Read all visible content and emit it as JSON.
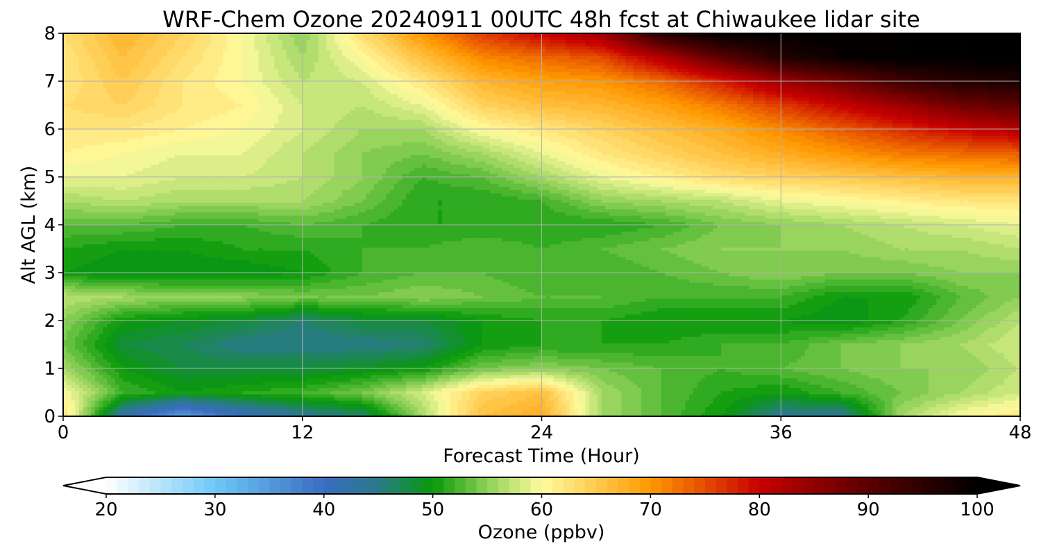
{
  "chart_data": {
    "type": "heatmap",
    "title": "WRF-Chem Ozone  20240911 00UTC 48h fcst at Chiwaukee lidar site",
    "xlabel": "Forecast Time (Hour)",
    "ylabel": "Alt AGL (km)",
    "xlim": [
      0,
      48
    ],
    "ylim": [
      0,
      8
    ],
    "xticks": [
      0,
      12,
      24,
      36,
      48
    ],
    "yticks": [
      0,
      1,
      2,
      3,
      4,
      5,
      6,
      7,
      8
    ],
    "grid": true,
    "x_hours": [
      0,
      3,
      6,
      9,
      12,
      15,
      18,
      21,
      24,
      27,
      30,
      33,
      36,
      39,
      42,
      45,
      48
    ],
    "y_km": [
      0,
      0.5,
      1,
      1.5,
      2,
      2.5,
      3,
      3.5,
      4,
      4.5,
      5,
      5.5,
      6,
      6.5,
      7,
      7.5,
      8
    ],
    "ozone_ppbv": [
      [
        63,
        42,
        34,
        40,
        44,
        46,
        56,
        66,
        68,
        56,
        53,
        50,
        44,
        44,
        56,
        60,
        62
      ],
      [
        60,
        52,
        50,
        51,
        52,
        54,
        58,
        64,
        66,
        56,
        53,
        51,
        50,
        52,
        54,
        56,
        58
      ],
      [
        56,
        50,
        48,
        48,
        48,
        49,
        50,
        54,
        55,
        54,
        53,
        52,
        53,
        54,
        55,
        55,
        57
      ],
      [
        54,
        48,
        47,
        45,
        45,
        45,
        46,
        50,
        51,
        51,
        51,
        52,
        52,
        54,
        55,
        56,
        58
      ],
      [
        55,
        50,
        49,
        48,
        46,
        48,
        48,
        50,
        51,
        51,
        50,
        50,
        50,
        49,
        51,
        54,
        57
      ],
      [
        57,
        56,
        55,
        55,
        54,
        54,
        55,
        54,
        53,
        53,
        52,
        52,
        52,
        50,
        50,
        53,
        55
      ],
      [
        50,
        49,
        49,
        49,
        50,
        52,
        53,
        53,
        52,
        52,
        53,
        54,
        55,
        54,
        54,
        55,
        55
      ],
      [
        51,
        50,
        50,
        51,
        51,
        52,
        52,
        53,
        52,
        53,
        54,
        55,
        55,
        55,
        56,
        56,
        57
      ],
      [
        53,
        53,
        52,
        52,
        53,
        52,
        51,
        51,
        51,
        51,
        52,
        54,
        55,
        56,
        57,
        58,
        59
      ],
      [
        56,
        57,
        56,
        56,
        56,
        54,
        51,
        51,
        52,
        55,
        56,
        57,
        59,
        60,
        61,
        62,
        62
      ],
      [
        59,
        59,
        58,
        58,
        57,
        55,
        52,
        53,
        56,
        59,
        61,
        63,
        64,
        65,
        66,
        67,
        67
      ],
      [
        61,
        60,
        59,
        59,
        57,
        55,
        54,
        56,
        59,
        62,
        64,
        66,
        68,
        70,
        72,
        73,
        74
      ],
      [
        62,
        62,
        61,
        60,
        58,
        56,
        56,
        60,
        62,
        64,
        66,
        68,
        71,
        74,
        77,
        80,
        82
      ],
      [
        63,
        64,
        62,
        61,
        58,
        57,
        59,
        64,
        66,
        67,
        69,
        72,
        76,
        80,
        84,
        88,
        90
      ],
      [
        62,
        65,
        62,
        60,
        57,
        58,
        62,
        67,
        69,
        70,
        73,
        78,
        84,
        88,
        93,
        96,
        97
      ],
      [
        62,
        66,
        63,
        60,
        56,
        60,
        66,
        71,
        73,
        75,
        82,
        90,
        96,
        99,
        100,
        100,
        100
      ],
      [
        63,
        67,
        64,
        60,
        55,
        63,
        70,
        76,
        80,
        84,
        96,
        100,
        100,
        100,
        100,
        100,
        100
      ]
    ],
    "colorbar": {
      "label": "Ozone  (ppbv)",
      "min": 20,
      "max": 100,
      "ticks": [
        20,
        30,
        40,
        50,
        60,
        70,
        80,
        90,
        100
      ],
      "extend": "both",
      "anchors": [
        {
          "v": 20,
          "c": "#ffffff"
        },
        {
          "v": 30,
          "c": "#6ec8f7"
        },
        {
          "v": 40,
          "c": "#3a6cc0"
        },
        {
          "v": 45,
          "c": "#2a7a8a"
        },
        {
          "v": 50,
          "c": "#089a08"
        },
        {
          "v": 55,
          "c": "#8ed058"
        },
        {
          "v": 60,
          "c": "#fffb9e"
        },
        {
          "v": 70,
          "c": "#ff9800"
        },
        {
          "v": 80,
          "c": "#c80000"
        },
        {
          "v": 90,
          "c": "#5a0000"
        },
        {
          "v": 100,
          "c": "#000000"
        }
      ]
    }
  }
}
